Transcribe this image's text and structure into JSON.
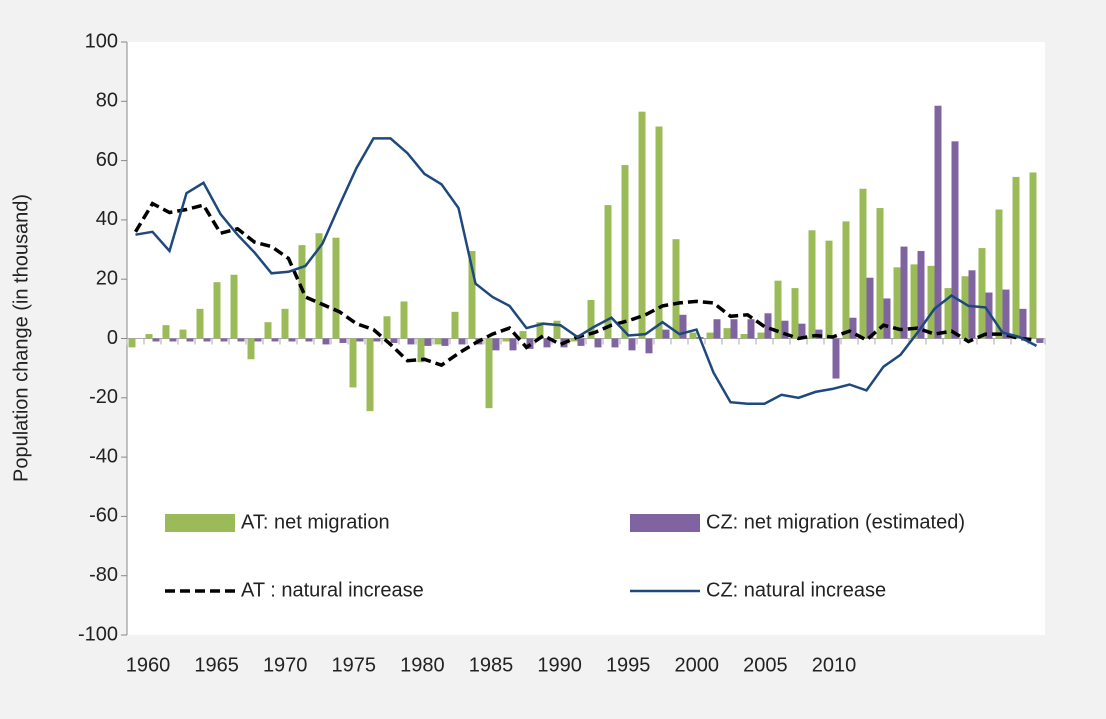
{
  "chart_data": {
    "type": "bar",
    "y_label": "Population change (in thousand)",
    "categories": [
      1960,
      1961,
      1962,
      1963,
      1964,
      1965,
      1966,
      1967,
      1968,
      1969,
      1970,
      1971,
      1972,
      1973,
      1974,
      1975,
      1976,
      1977,
      1978,
      1979,
      1980,
      1981,
      1982,
      1983,
      1984,
      1985,
      1986,
      1987,
      1988,
      1989,
      1990,
      1991,
      1992,
      1993,
      1994,
      1995,
      1996,
      1997,
      1998,
      1999,
      2000,
      2001,
      2002,
      2003,
      2004,
      2005,
      2006,
      2007,
      2008,
      2009,
      2010,
      2011,
      2012,
      2013
    ],
    "xticks": [
      1960,
      1965,
      1970,
      1975,
      1980,
      1985,
      1990,
      1995,
      2000,
      2005,
      2010
    ],
    "ylim": [
      -100,
      100
    ],
    "yticks": [
      -100,
      -80,
      -60,
      -40,
      -20,
      0,
      20,
      40,
      60,
      80,
      100
    ],
    "series": [
      {
        "name": "AT: net migration",
        "type": "bar",
        "color": "#9bbb59",
        "values": [
          -3,
          1.5,
          4.5,
          3,
          10,
          19,
          21.5,
          -7,
          5.5,
          10,
          31.5,
          35.5,
          34,
          -16.5,
          -24.5,
          7.5,
          12.5,
          -8,
          -2,
          9,
          29.5,
          -23.5,
          -1,
          2.5,
          5.5,
          6,
          -1,
          13,
          45,
          58.5,
          76.5,
          71.5,
          33.5,
          2,
          2,
          3.5,
          1.5,
          2,
          19.5,
          17,
          36.5,
          33,
          39.5,
          50.5,
          44,
          24,
          25,
          24.5,
          17,
          21,
          30.5,
          43.5,
          54.5,
          56
        ]
      },
      {
        "name": "CZ: net migration (estimated)",
        "type": "bar",
        "color": "#8064a2",
        "values": [
          0,
          -1,
          -1,
          -1,
          -1,
          -1,
          -1,
          -1,
          -1,
          -1,
          -1,
          -2,
          -1.5,
          -1,
          -1,
          -1.5,
          -2,
          -2.5,
          -2.5,
          -2,
          -2,
          -4,
          -4,
          -3.5,
          -3,
          -3,
          -2.5,
          -3,
          -3,
          -4,
          -5,
          3,
          8,
          0.5,
          6.5,
          6.5,
          6.5,
          8.5,
          6,
          5,
          3,
          -13.5,
          7,
          20.5,
          13.5,
          31,
          29.5,
          78.5,
          66.5,
          23,
          15.5,
          16.5,
          10,
          -1.5
        ]
      },
      {
        "name": "AT : natural increase",
        "type": "line",
        "dashed": true,
        "color": "#000000",
        "values": [
          36,
          45.5,
          42.5,
          43.5,
          45,
          35.5,
          37,
          32.5,
          31,
          27,
          14,
          11.5,
          9,
          5,
          3,
          -2,
          -7.5,
          -7,
          -9,
          -5,
          -1.5,
          1.5,
          3.5,
          -3,
          1,
          -2,
          0.5,
          2,
          4.5,
          6,
          8,
          11,
          12,
          12.5,
          12,
          7.5,
          8,
          4,
          2,
          0,
          1,
          0.5,
          2.5,
          -0.5,
          4.5,
          3,
          3.5,
          1.5,
          2.5,
          -1,
          1.5,
          1.5,
          0,
          -0.5
        ]
      },
      {
        "name": "CZ: natural increase",
        "type": "line",
        "dashed": false,
        "color": "#1f497d",
        "values": [
          35,
          36,
          29.5,
          49,
          52.5,
          42,
          35,
          29,
          22,
          22.5,
          24.5,
          32,
          45,
          57.5,
          67.5,
          67.5,
          62.5,
          55.5,
          52,
          44,
          18.5,
          14,
          11,
          3.5,
          5,
          4.5,
          0.5,
          4,
          7,
          1,
          1.5,
          5.5,
          1.5,
          3,
          -11.5,
          -21.5,
          -22,
          -22,
          -19,
          -20,
          -18,
          -17,
          -15.5,
          -17.5,
          -9.5,
          -5.5,
          2,
          10,
          14.5,
          11,
          10.5,
          2,
          0.5,
          -2.5
        ]
      }
    ]
  }
}
